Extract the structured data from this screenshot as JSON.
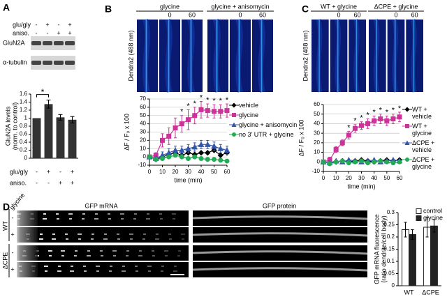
{
  "panels": [
    "A",
    "B",
    "C",
    "D"
  ],
  "blot": {
    "conditions": [
      {
        "label": "glu/gly",
        "signs": [
          "-",
          "+",
          "-",
          "+"
        ]
      },
      {
        "label": "aniso.",
        "signs": [
          "-",
          "-",
          "+",
          "+"
        ]
      }
    ],
    "bands": [
      "GluN2A",
      "α-tubulin"
    ]
  },
  "images_b": {
    "side_label": "Dendra2 (488 nm)",
    "groups": [
      {
        "title": "glycine",
        "times": [
          "0",
          "60"
        ]
      },
      {
        "title": "glycine + anisomycin",
        "times": [
          "0",
          "60"
        ]
      }
    ]
  },
  "images_c": {
    "side_label": "Dendra2 (488 nm)",
    "groups": [
      {
        "title": "WT + glycine",
        "times": [
          "0",
          "60"
        ]
      },
      {
        "title": "ΔCPE + glycine",
        "times": [
          "0",
          "60"
        ]
      }
    ]
  },
  "images_d": {
    "treatment": "glycine",
    "columns": [
      "GFP mRNA",
      "GFP protein"
    ],
    "genotypes": [
      "WT",
      "ΔCPE"
    ],
    "signs": [
      "-",
      "+",
      "-",
      "+"
    ]
  },
  "chart_data": [
    {
      "type": "bar",
      "ylabel": [
        "GluN2A levels",
        "(norm. to control)"
      ],
      "color": "#333333",
      "values": [
        1,
        1.35,
        1.02,
        0.96
      ],
      "errors": [
        0,
        0.1,
        0.07,
        0.08
      ],
      "conditions": [
        {
          "label": "glu/gly",
          "signs": [
            "-",
            "+",
            "-",
            "+"
          ]
        },
        {
          "label": "aniso.",
          "signs": [
            "-",
            "-",
            "+",
            "+"
          ]
        }
      ],
      "ylim": [
        0,
        1.6
      ],
      "yticks": [
        0,
        0.2,
        0.4,
        0.6,
        0.8,
        1,
        1.2,
        1.4,
        1.6
      ],
      "annotations": [
        {
          "text": "*",
          "between": [
            0,
            1
          ]
        }
      ]
    },
    {
      "type": "line",
      "xlabel": "time (min)",
      "ylabel": "ΔF / F₀ x 100",
      "x": [
        0,
        5,
        10,
        15,
        20,
        25,
        30,
        35,
        40,
        45,
        50,
        55,
        60
      ],
      "series": [
        {
          "name": "vehicle",
          "color": "#000000",
          "marker": "diamond",
          "values": [
            0,
            -3,
            0,
            3,
            5,
            2,
            5,
            3,
            5,
            5,
            8,
            2,
            5
          ]
        },
        {
          "name": "glycine",
          "color": "#cc3399",
          "marker": "square",
          "values": [
            0,
            2,
            20,
            25,
            35,
            40,
            45,
            50,
            57,
            56,
            55,
            55,
            56
          ],
          "errors": [
            0,
            3,
            8,
            10,
            12,
            10,
            12,
            10,
            10,
            8,
            8,
            8,
            8
          ]
        },
        {
          "name": "glycine + anisomycin",
          "color": "#3355aa",
          "marker": "triangle",
          "values": [
            0,
            -2,
            2,
            5,
            8,
            8,
            10,
            12,
            15,
            15,
            13,
            10,
            8
          ],
          "errors": [
            0,
            3,
            4,
            5,
            5,
            5,
            5,
            5,
            5,
            5,
            5,
            5,
            5
          ]
        },
        {
          "name": "no 3' UTR + glycine",
          "color": "#22aa55",
          "marker": "circle",
          "values": [
            0,
            -3,
            -2,
            0,
            2,
            0,
            -2,
            0,
            -2,
            -3,
            -3,
            -4,
            -5
          ]
        }
      ],
      "xlim": [
        0,
        60
      ],
      "xticks": [
        0,
        10,
        20,
        30,
        40,
        50,
        60
      ],
      "ylim": [
        -10,
        70
      ],
      "yticks": [
        -10,
        0,
        10,
        20,
        30,
        40,
        50,
        60,
        70
      ],
      "grid": true,
      "annotations": [
        {
          "text": "*",
          "x": 25
        },
        {
          "text": "*",
          "x": 30
        },
        {
          "text": "*",
          "x": 35
        },
        {
          "text": "*",
          "x": 40
        },
        {
          "text": "*",
          "x": 45
        },
        {
          "text": "*",
          "x": 50
        },
        {
          "text": "*",
          "x": 55
        },
        {
          "text": "*",
          "x": 60
        }
      ]
    },
    {
      "type": "line",
      "xlabel": "time (min)",
      "ylabel": "ΔF / F₀ x 100",
      "x": [
        0,
        5,
        10,
        15,
        20,
        25,
        30,
        35,
        40,
        45,
        50,
        55,
        60
      ],
      "series": [
        {
          "name": "WT + vehicle",
          "color": "#000000",
          "marker": "diamond",
          "values": [
            0,
            -1,
            0,
            1,
            0,
            1,
            2,
            1,
            0,
            1,
            2,
            1,
            2
          ]
        },
        {
          "name": "WT + glycine",
          "color": "#cc3399",
          "marker": "square",
          "values": [
            0,
            2,
            13,
            20,
            28,
            35,
            38,
            40,
            43,
            45,
            43,
            45,
            47
          ],
          "errors": [
            0,
            3,
            3,
            3,
            4,
            4,
            4,
            5,
            5,
            5,
            5,
            5,
            5
          ]
        },
        {
          "name": "ΔCPE + vehicle",
          "color": "#3355aa",
          "marker": "triangle",
          "values": [
            0,
            -1,
            1,
            0,
            2,
            1,
            0,
            1,
            2,
            0,
            1,
            2,
            1
          ]
        },
        {
          "name": "ΔCPE + glycine",
          "color": "#22aa55",
          "marker": "circle",
          "values": [
            0,
            -2,
            0,
            1,
            -1,
            0,
            1,
            -1,
            0,
            1,
            0,
            -1,
            0
          ]
        }
      ],
      "xlim": [
        0,
        60
      ],
      "xticks": [
        0,
        10,
        20,
        30,
        40,
        50,
        60
      ],
      "ylim": [
        -10,
        60
      ],
      "yticks": [
        -10,
        0,
        10,
        20,
        30,
        40,
        50,
        60
      ],
      "grid": true,
      "annotations": [
        {
          "text": "*",
          "x": 20
        },
        {
          "text": "*",
          "x": 25
        },
        {
          "text": "*",
          "x": 30
        },
        {
          "text": "*",
          "x": 35
        },
        {
          "text": "*",
          "x": 40
        },
        {
          "text": "*",
          "x": 45
        },
        {
          "text": "*",
          "x": 50
        },
        {
          "text": "*",
          "x": 55
        },
        {
          "text": "*",
          "x": 60
        }
      ]
    },
    {
      "type": "grouped-bar",
      "ylabel": [
        "GFP mRNA fluorescence",
        "(ratio dendrite/cell body)"
      ],
      "categories": [
        "WT",
        "ΔCPE"
      ],
      "series": [
        {
          "name": "control",
          "color": "#ffffff",
          "values": [
            0.23,
            0.24
          ],
          "errors": [
            0.03,
            0.04
          ]
        },
        {
          "name": "glycine",
          "color": "#222222",
          "values": [
            0.21,
            0.245
          ],
          "errors": [
            0.02,
            0.025
          ]
        }
      ],
      "ylim": [
        0,
        0.3
      ],
      "yticks": [
        0,
        0.05,
        0.1,
        0.15,
        0.2,
        0.25,
        0.3
      ],
      "legend": "top-right"
    }
  ]
}
